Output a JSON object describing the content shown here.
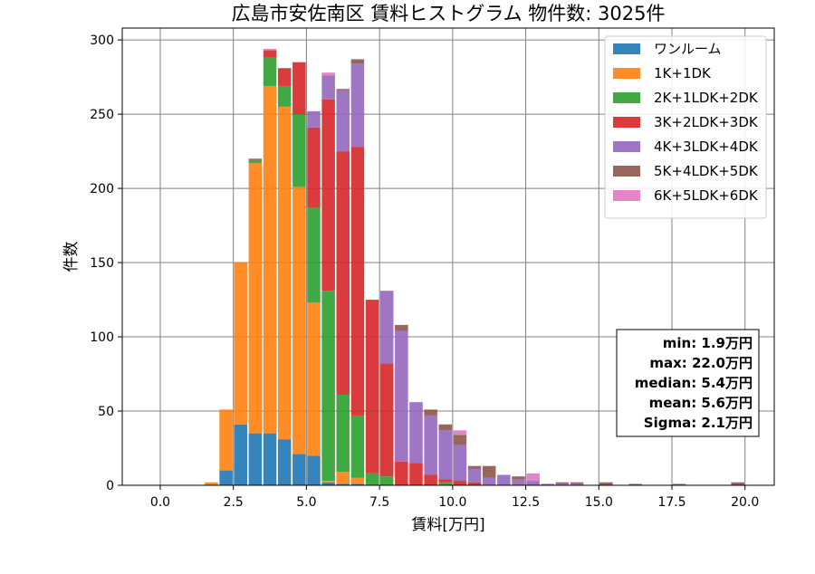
{
  "chart_data": {
    "type": "bar",
    "title": "広島市安佐南区 賃料ヒストグラム 物件数: 3025件",
    "xlabel": "賃料[万円]",
    "ylabel": "件数",
    "xlim": [
      -1.3,
      21.0
    ],
    "ylim": [
      0,
      308
    ],
    "xticks": [
      0,
      2.5,
      5,
      7.5,
      10,
      12.5,
      15,
      17.5,
      20
    ],
    "xtick_labels": [
      "0.0",
      "2.5",
      "5.0",
      "7.5",
      "10.0",
      "12.5",
      "15.0",
      "17.5",
      "20.0"
    ],
    "yticks": [
      0,
      50,
      100,
      150,
      200,
      250,
      300
    ],
    "ytick_labels": [
      "0",
      "50",
      "100",
      "150",
      "200",
      "250",
      "300"
    ],
    "grid": true,
    "legend_position": "top-right",
    "stacked": true,
    "bin_width": 0.5,
    "x": [
      1.5,
      2.0,
      2.5,
      3.0,
      3.5,
      4.0,
      4.5,
      5.0,
      5.5,
      6.0,
      6.5,
      7.0,
      7.5,
      8.0,
      8.5,
      9.0,
      9.5,
      10.0,
      10.5,
      11.0,
      11.5,
      12.0,
      12.5,
      13.0,
      13.5,
      14.0,
      14.5,
      15.0,
      15.5,
      16.0,
      16.5,
      17.0,
      17.5,
      18.0,
      18.5,
      19.0,
      19.5
    ],
    "series": [
      {
        "name": "ワンルーム",
        "color": "#1f77b4",
        "values": [
          0,
          10,
          41,
          35,
          35,
          31,
          21,
          20,
          2,
          1,
          1,
          0,
          0,
          0,
          0,
          0,
          0,
          0,
          0,
          0,
          0,
          0,
          0,
          0,
          0,
          0,
          0,
          0,
          0,
          0,
          0,
          0,
          0,
          0,
          0,
          0,
          0
        ]
      },
      {
        "name": "1K+1DK",
        "color": "#ff7f0e",
        "values": [
          2,
          41,
          109,
          182,
          234,
          224,
          180,
          103,
          1,
          8,
          4,
          0,
          0,
          0,
          0,
          0,
          0,
          0,
          0,
          0,
          0,
          0,
          0,
          0,
          0,
          0,
          0,
          0,
          0,
          0,
          0,
          0,
          0,
          0,
          0,
          0,
          0
        ]
      },
      {
        "name": "2K+1LDK+2DK",
        "color": "#2ca02c",
        "values": [
          0,
          0,
          0,
          2,
          19,
          14,
          49,
          64,
          128,
          52,
          42,
          8,
          6,
          0,
          0,
          0,
          2,
          0,
          0,
          0,
          0,
          0,
          0,
          0,
          0,
          0,
          0,
          0,
          0,
          0,
          0,
          0,
          0,
          0,
          0,
          0,
          0
        ]
      },
      {
        "name": "3K+2LDK+3DK",
        "color": "#d62728",
        "values": [
          0,
          0,
          0,
          0,
          5,
          12,
          35,
          54,
          129,
          164,
          181,
          117,
          76,
          16,
          15,
          7,
          2,
          3,
          2,
          0,
          0,
          0,
          0,
          0,
          0,
          0,
          0,
          0,
          0,
          0,
          0,
          0,
          0,
          0,
          0,
          0,
          0
        ]
      },
      {
        "name": "4K+3LDK+4DK",
        "color": "#9467bd",
        "values": [
          0,
          0,
          0,
          0,
          0,
          0,
          0,
          11,
          16,
          41,
          56,
          0,
          49,
          88,
          41,
          40,
          33,
          24,
          9,
          5,
          7,
          4,
          3,
          1,
          1,
          1,
          0,
          0,
          0,
          1,
          0,
          0,
          1,
          0,
          0,
          0,
          0
        ]
      },
      {
        "name": "5K+4LDK+5DK",
        "color": "#8c564b",
        "values": [
          0,
          0,
          0,
          1,
          0,
          0,
          0,
          0,
          0,
          1,
          3,
          0,
          0,
          4,
          0,
          4,
          4,
          7,
          2,
          8,
          0,
          2,
          0,
          0,
          1,
          1,
          0,
          2,
          0,
          0,
          0,
          0,
          0,
          0,
          0,
          0,
          2
        ]
      },
      {
        "name": "6K+5LDK+6DK",
        "color": "#e377c2",
        "values": [
          0,
          0,
          0,
          0,
          1,
          0,
          0,
          0,
          2,
          0,
          0,
          0,
          0,
          0,
          0,
          0,
          0,
          3,
          0,
          0,
          0,
          0,
          5,
          0,
          0,
          0,
          0,
          0,
          0,
          0,
          0,
          0,
          0,
          0,
          0,
          0,
          0
        ]
      }
    ],
    "stats": [
      "min: 1.9万円",
      "max: 22.0万円",
      "median: 5.4万円",
      "mean: 5.6万円",
      "Sigma: 2.1万円"
    ]
  }
}
